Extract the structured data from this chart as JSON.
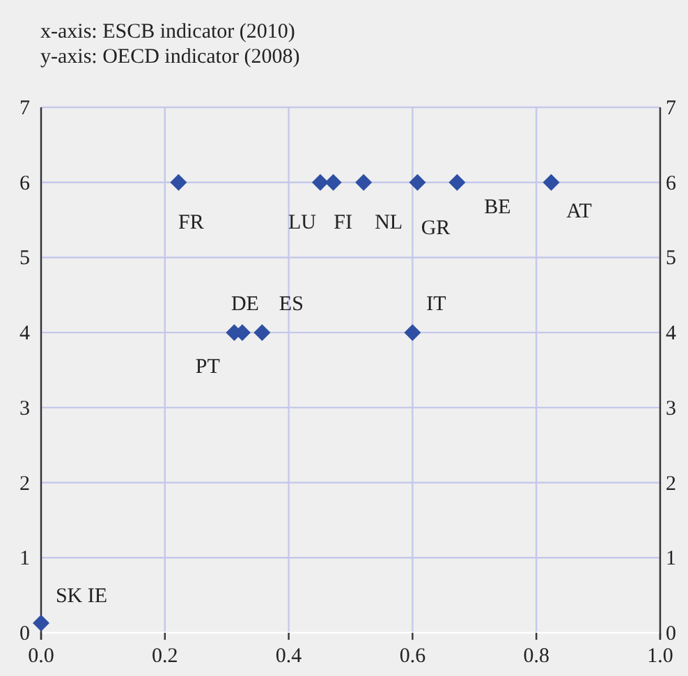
{
  "chart_data": {
    "type": "scatter",
    "title": "x-axis: ESCB indicator (2010)",
    "subtitle": "y-axis: OECD indicator (2008)",
    "x": [
      0.222,
      0.451,
      0.472,
      0.521,
      0.608,
      0.672,
      0.824,
      0.312,
      0.325,
      0.357,
      0.6,
      0
    ],
    "series": [
      {
        "color": "#2e4fa3",
        "values": [
          6,
          6,
          6,
          6,
          6,
          6,
          6,
          4,
          4,
          4,
          4,
          0.13
        ]
      }
    ],
    "marker": "diamond",
    "grid": true,
    "xlim": [
      0,
      1
    ],
    "xticks": [
      {
        "value": 0,
        "label": "0.0"
      },
      {
        "value": 0.2,
        "label": "0.2"
      },
      {
        "value": 0.4,
        "label": "0.4"
      },
      {
        "value": 0.6,
        "label": "0.6"
      },
      {
        "value": 0.8,
        "label": "0.8"
      },
      {
        "value": 1,
        "label": "1.0"
      }
    ],
    "ylim": [
      0,
      7
    ],
    "yticks": [
      0,
      1,
      2,
      3,
      4,
      5,
      6,
      7
    ],
    "y2lim": [
      0,
      7
    ],
    "y2ticks": [
      0,
      1,
      2,
      3,
      4,
      5,
      6,
      7
    ],
    "annotations": [
      {
        "text": "FR",
        "x": 0.222,
        "y": 6
      },
      {
        "text": "LU",
        "x": 0.451,
        "y": 6
      },
      {
        "text": "FI",
        "x": 0.472,
        "y": 6
      },
      {
        "text": "NL",
        "x": 0.521,
        "y": 6
      },
      {
        "text": "GR",
        "x": 0.608,
        "y": 6
      },
      {
        "text": "BE",
        "x": 0.672,
        "y": 6
      },
      {
        "text": "AT",
        "x": 0.824,
        "y": 6
      },
      {
        "text": "PT",
        "x": 0.312,
        "y": 4
      },
      {
        "text": "DE",
        "x": 0.325,
        "y": 4
      },
      {
        "text": "ES",
        "x": 0.357,
        "y": 4
      },
      {
        "text": "IT",
        "x": 0.6,
        "y": 4
      },
      {
        "text": "SK IE",
        "x": 0,
        "y": 0.13
      }
    ]
  }
}
